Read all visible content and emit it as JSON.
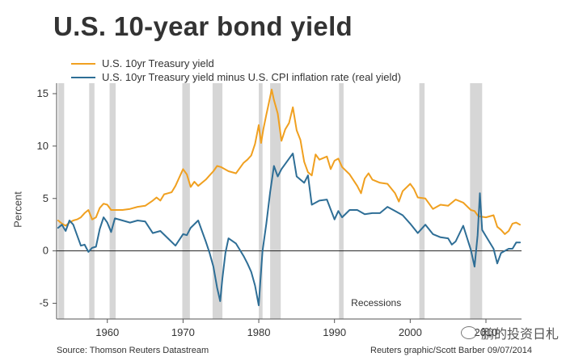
{
  "title": "U.S. 10-year bond yield",
  "legend": [
    {
      "label": "U.S. 10yr Treasury yield",
      "color": "#f0a020"
    },
    {
      "label": "U.S. 10yr Treasury yield minus U.S. CPI inflation rate (real yield)",
      "color": "#2e6e96"
    }
  ],
  "ylabel": "Percent",
  "recession_label": "Recessions",
  "source": "Source: Thomson Reuters Datastream",
  "credit": "Reuters graphic/Scott Barber 09/07/2014",
  "watermark": "鹏的投资日札",
  "chart_data": {
    "type": "line",
    "title": "U.S. 10-year bond yield",
    "ylabel": "Percent",
    "xlabel": "",
    "xlim": [
      1953.3,
      2014.7
    ],
    "ylim": [
      -6.5,
      16.0
    ],
    "yticks": [
      -5,
      0,
      5,
      10,
      15
    ],
    "xticks": [
      1960,
      1970,
      1980,
      1990,
      2000,
      2010
    ],
    "grid": false,
    "legend_position": "top-left",
    "recessions": [
      [
        1953.5,
        1954.3
      ],
      [
        1957.6,
        1958.3
      ],
      [
        1960.3,
        1961.1
      ],
      [
        1969.9,
        1970.9
      ],
      [
        1973.9,
        1975.2
      ],
      [
        1980.0,
        1980.5
      ],
      [
        1981.5,
        1982.9
      ],
      [
        1990.6,
        1991.2
      ],
      [
        2001.2,
        2001.9
      ],
      [
        2007.9,
        2009.5
      ]
    ],
    "series": [
      {
        "name": "U.S. 10yr Treasury yield",
        "color": "#f0a020",
        "x": [
          1953.5,
          1954,
          1954.5,
          1955,
          1955.5,
          1956,
          1956.5,
          1957,
          1957.5,
          1958,
          1958.5,
          1959,
          1959.5,
          1960,
          1960.5,
          1961,
          1962,
          1963,
          1964,
          1965,
          1966,
          1966.5,
          1967,
          1967.5,
          1968,
          1968.5,
          1969,
          1969.5,
          1970,
          1970.5,
          1971,
          1971.5,
          1972,
          1973,
          1973.5,
          1974,
          1974.5,
          1975,
          1976,
          1977,
          1978,
          1978.5,
          1979,
          1979.5,
          1980,
          1980.3,
          1980.6,
          1981,
          1981.3,
          1981.7,
          1982,
          1982.5,
          1983,
          1983.5,
          1984,
          1984.5,
          1985,
          1985.5,
          1986,
          1986.5,
          1987,
          1987.5,
          1988,
          1989,
          1989.5,
          1990,
          1990.5,
          1991,
          1992,
          1993,
          1993.5,
          1994,
          1994.5,
          1995,
          1996,
          1997,
          1998,
          1998.5,
          1999,
          2000,
          2000.5,
          2001,
          2002,
          2003,
          2004,
          2005,
          2006,
          2007,
          2008,
          2008.5,
          2009,
          2010,
          2011,
          2011.5,
          2012,
          2012.5,
          2013,
          2013.5,
          2014,
          2014.5
        ],
        "values": [
          2.9,
          2.6,
          2.4,
          2.7,
          2.9,
          3.0,
          3.2,
          3.6,
          3.9,
          3.0,
          3.2,
          4.1,
          4.5,
          4.4,
          3.9,
          3.9,
          3.9,
          4.0,
          4.2,
          4.3,
          4.8,
          5.1,
          4.8,
          5.4,
          5.5,
          5.6,
          6.2,
          7.0,
          7.8,
          7.3,
          6.1,
          6.6,
          6.2,
          6.8,
          7.2,
          7.6,
          8.1,
          8.0,
          7.6,
          7.4,
          8.4,
          8.7,
          9.1,
          10.2,
          12.0,
          10.3,
          11.6,
          13.0,
          14.0,
          15.4,
          14.4,
          13.1,
          10.5,
          11.6,
          12.2,
          13.7,
          11.5,
          10.6,
          8.5,
          7.5,
          7.2,
          9.2,
          8.7,
          9.0,
          7.8,
          8.6,
          8.8,
          8.0,
          7.3,
          6.2,
          5.5,
          6.9,
          7.4,
          6.8,
          6.5,
          6.4,
          5.5,
          4.7,
          5.7,
          6.4,
          5.9,
          5.1,
          5.0,
          4.0,
          4.4,
          4.3,
          4.9,
          4.6,
          3.9,
          3.8,
          3.3,
          3.2,
          3.4,
          2.3,
          2.0,
          1.6,
          1.9,
          2.6,
          2.7,
          2.5
        ]
      },
      {
        "name": "U.S. 10yr Treasury yield minus U.S. CPI inflation rate (real yield)",
        "color": "#2e6e96",
        "x": [
          1953.5,
          1954,
          1954.5,
          1955,
          1955.5,
          1956,
          1956.5,
          1957,
          1957.5,
          1958,
          1958.5,
          1959,
          1959.5,
          1960,
          1960.5,
          1961,
          1962,
          1963,
          1964,
          1965,
          1966,
          1967,
          1968,
          1969,
          1970,
          1970.5,
          1971,
          1972,
          1973,
          1973.5,
          1974,
          1974.5,
          1974.9,
          1975.2,
          1975.6,
          1976,
          1977,
          1978,
          1978.5,
          1979,
          1979.5,
          1980,
          1980.2,
          1980.5,
          1981,
          1981.5,
          1982,
          1982.5,
          1983,
          1984,
          1984.5,
          1985,
          1986,
          1986.5,
          1987,
          1988,
          1989,
          1990,
          1990.5,
          1991,
          1992,
          1993,
          1994,
          1995,
          1996,
          1997,
          1998,
          1999,
          2000,
          2001,
          2002,
          2003,
          2004,
          2005,
          2005.5,
          2006,
          2007,
          2008,
          2008.5,
          2008.9,
          2009.2,
          2009.5,
          2010,
          2011,
          2011.5,
          2012,
          2013,
          2013.5,
          2014,
          2014.5
        ],
        "values": [
          2.2,
          2.5,
          1.9,
          2.9,
          2.5,
          1.5,
          0.5,
          0.6,
          -0.1,
          0.3,
          0.4,
          2.1,
          3.2,
          2.7,
          1.8,
          3.1,
          2.9,
          2.7,
          2.9,
          2.8,
          1.7,
          1.9,
          1.2,
          0.5,
          1.6,
          1.5,
          2.2,
          2.9,
          0.9,
          -0.2,
          -1.5,
          -3.5,
          -4.8,
          -2.6,
          -0.2,
          1.2,
          0.7,
          -0.5,
          -1.2,
          -2.0,
          -3.3,
          -5.2,
          -3.0,
          0.0,
          2.6,
          5.6,
          8.1,
          7.1,
          7.8,
          8.8,
          9.3,
          7.1,
          6.5,
          7.2,
          4.4,
          4.8,
          4.9,
          3.0,
          3.8,
          3.2,
          3.9,
          3.9,
          3.5,
          3.6,
          3.6,
          4.2,
          3.8,
          3.4,
          2.6,
          1.7,
          2.5,
          1.6,
          1.3,
          1.2,
          0.6,
          0.9,
          2.4,
          0.1,
          -1.5,
          1.5,
          5.5,
          2.0,
          1.4,
          0.2,
          -1.2,
          -0.2,
          0.2,
          0.2,
          0.8,
          0.8
        ]
      }
    ]
  }
}
